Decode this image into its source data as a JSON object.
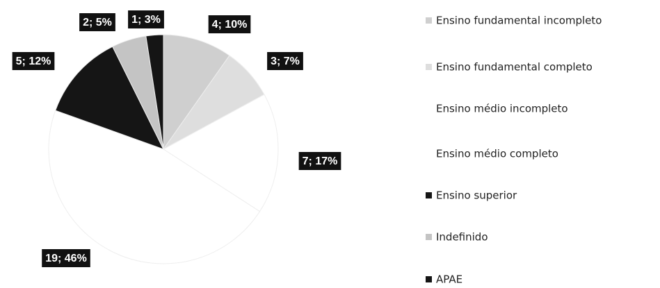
{
  "chart_data": {
    "type": "pie",
    "categories": [
      "Ensino fundamental incompleto",
      "Ensino fundamental completo",
      "Ensino médio incompleto",
      "Ensino médio completo",
      "Ensino superior",
      "Indefinido",
      "APAE"
    ],
    "values": [
      4,
      3,
      7,
      19,
      5,
      2,
      1
    ],
    "value_labels": [
      "4; 10%",
      "3; 7%",
      "7; 17%",
      "19; 46%",
      "5; 12%",
      "2; 5%",
      "1; 3%"
    ],
    "colors": [
      "#cfcfcf",
      "#dedede",
      "#ffffff",
      "#ffffff",
      "#151515",
      "#c4c4c4",
      "#151515"
    ],
    "legend": "right"
  }
}
